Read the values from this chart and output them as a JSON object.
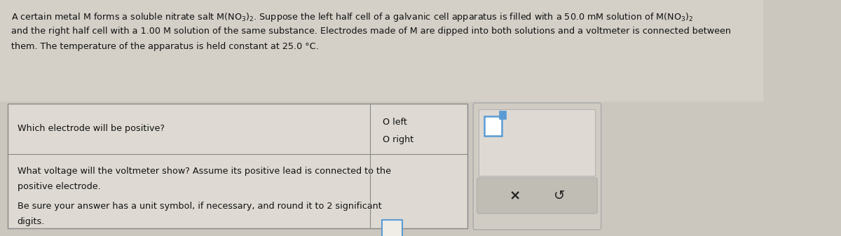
{
  "bg_color": "#cbc7be",
  "table_bg": "#dedad2",
  "table_border": "#888888",
  "text_color": "#111111",
  "title_line1": "A certain metal M forms a soluble nitrate salt M(NO₃)₂. Suppose the left half cell of a galvanic cell apparatus is filled with a 50.0 mM solution of M(NO₃)₂",
  "title_line2": "and the right half cell with a 1.00 M solution of the same substance. Electrodes made of M are dipped into both solutions and a voltmeter is connected between",
  "title_line3": "them. The temperature of the apparatus is held constant at 25.0 °C.",
  "q1_text": "Which electrode will be positive?",
  "q1_opt1": "O left",
  "q1_opt2": "O right",
  "q2_line1": "What voltage will the voltmeter show? Assume its positive lead is connected to the",
  "q2_line2": "positive electrode.",
  "q2_line3": "Be sure your answer has a unit symbol, if necessary, and round it to 2 significant",
  "q2_line4": "digits.",
  "x_symbol": "×",
  "undo_symbol": "↺",
  "input_border_color": "#5b9bd5",
  "panel_bg": "#d0ccc4",
  "panel_border": "#aaaaaa",
  "btn_bg": "#c0bdb5",
  "answer_top_bg": "#dedad2",
  "small_box_color": "#5b9bd5"
}
